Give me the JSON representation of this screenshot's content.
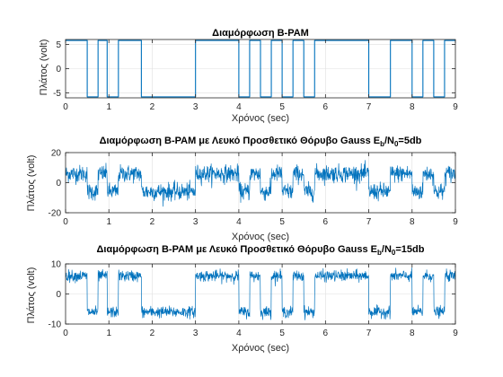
{
  "colors": {
    "line": "#0072BD",
    "axis": "#262626",
    "grid": "#DFDFDF",
    "background": "#FFFFFF"
  },
  "chart_data": [
    {
      "type": "line",
      "title_main": "Διαμόρφωση B-PAM",
      "title_sub_parts": [],
      "xlabel": "Χρόνος (sec)",
      "ylabel": "Πλάτος (volt)",
      "xlim": [
        0,
        9
      ],
      "ylim": [
        -6,
        6
      ],
      "xticks": [
        0,
        1,
        2,
        3,
        4,
        5,
        6,
        7,
        8,
        9
      ],
      "yticks": [
        -5,
        0,
        5
      ],
      "grid": true,
      "noise_sigma": 0,
      "series": [
        {
          "transitions_x": [
            0.5,
            0.75,
            0.96,
            1.22,
            1.75,
            3.0,
            4.0,
            4.25,
            4.5,
            4.75,
            5.0,
            5.25,
            5.5,
            5.75,
            7.0,
            7.5,
            8.0,
            8.25,
            8.5,
            8.75
          ],
          "levels": [
            5.8,
            -5.8,
            5.8,
            -5.8,
            5.8,
            -5.8,
            5.8,
            -5.8,
            5.8,
            -5.8,
            5.8,
            -5.8,
            5.8,
            -5.8,
            5.8,
            -5.8,
            5.8,
            -5.8,
            5.8,
            -5.8,
            5.8
          ]
        }
      ]
    },
    {
      "type": "line",
      "title_main": "Διαμόρφωση B-PAM με Λευκό Προσθετικό Θόρυβο Gauss E",
      "title_sub_parts": [
        {
          "text": "b",
          "sub": true
        },
        {
          "text": "/N",
          "sub": false
        },
        {
          "text": "0",
          "sub": true
        },
        {
          "text": "=5db",
          "sub": false
        }
      ],
      "xlabel": "Χρόνος (sec)",
      "ylabel": "Πλάτος (volt)",
      "xlim": [
        0,
        9
      ],
      "ylim": [
        -20,
        20
      ],
      "xticks": [
        0,
        1,
        2,
        3,
        4,
        5,
        6,
        7,
        8,
        9
      ],
      "yticks": [
        -20,
        0,
        20
      ],
      "grid": true,
      "noise_sigma": 2.8,
      "series": [
        {
          "transitions_x": [
            0.5,
            0.75,
            0.96,
            1.22,
            1.75,
            3.0,
            4.0,
            4.25,
            4.5,
            4.75,
            5.0,
            5.25,
            5.5,
            5.75,
            7.0,
            7.5,
            8.0,
            8.25,
            8.5,
            8.75
          ],
          "levels": [
            6,
            -6,
            6,
            -6,
            6,
            -6,
            6,
            -6,
            6,
            -6,
            6,
            -6,
            6,
            -6,
            6,
            -6,
            6,
            -6,
            6,
            -6,
            6
          ]
        }
      ]
    },
    {
      "type": "line",
      "title_main": "Διαμόρφωση B-PAM με Λευκό Προσθετικό Θόρυβο Gauss E",
      "title_sub_parts": [
        {
          "text": "b",
          "sub": true
        },
        {
          "text": "/N",
          "sub": false
        },
        {
          "text": "0",
          "sub": true
        },
        {
          "text": "=15db",
          "sub": false
        }
      ],
      "xlabel": "Χρόνος (sec)",
      "ylabel": "Πλάτος (volt)",
      "xlim": [
        0,
        9
      ],
      "ylim": [
        -10,
        10
      ],
      "xticks": [
        0,
        1,
        2,
        3,
        4,
        5,
        6,
        7,
        8,
        9
      ],
      "yticks": [
        -10,
        0,
        10
      ],
      "grid": true,
      "noise_sigma": 0.9,
      "series": [
        {
          "transitions_x": [
            0.5,
            0.75,
            0.96,
            1.22,
            1.75,
            3.0,
            4.0,
            4.25,
            4.5,
            4.75,
            5.0,
            5.25,
            5.5,
            5.75,
            7.0,
            7.5,
            8.0,
            8.25,
            8.5,
            8.75
          ],
          "levels": [
            6,
            -6,
            6,
            -6,
            6,
            -6,
            6,
            -6,
            6,
            -6,
            6,
            -6,
            6,
            -6,
            6,
            -6,
            6,
            -6,
            6,
            -6,
            6
          ]
        }
      ]
    }
  ]
}
